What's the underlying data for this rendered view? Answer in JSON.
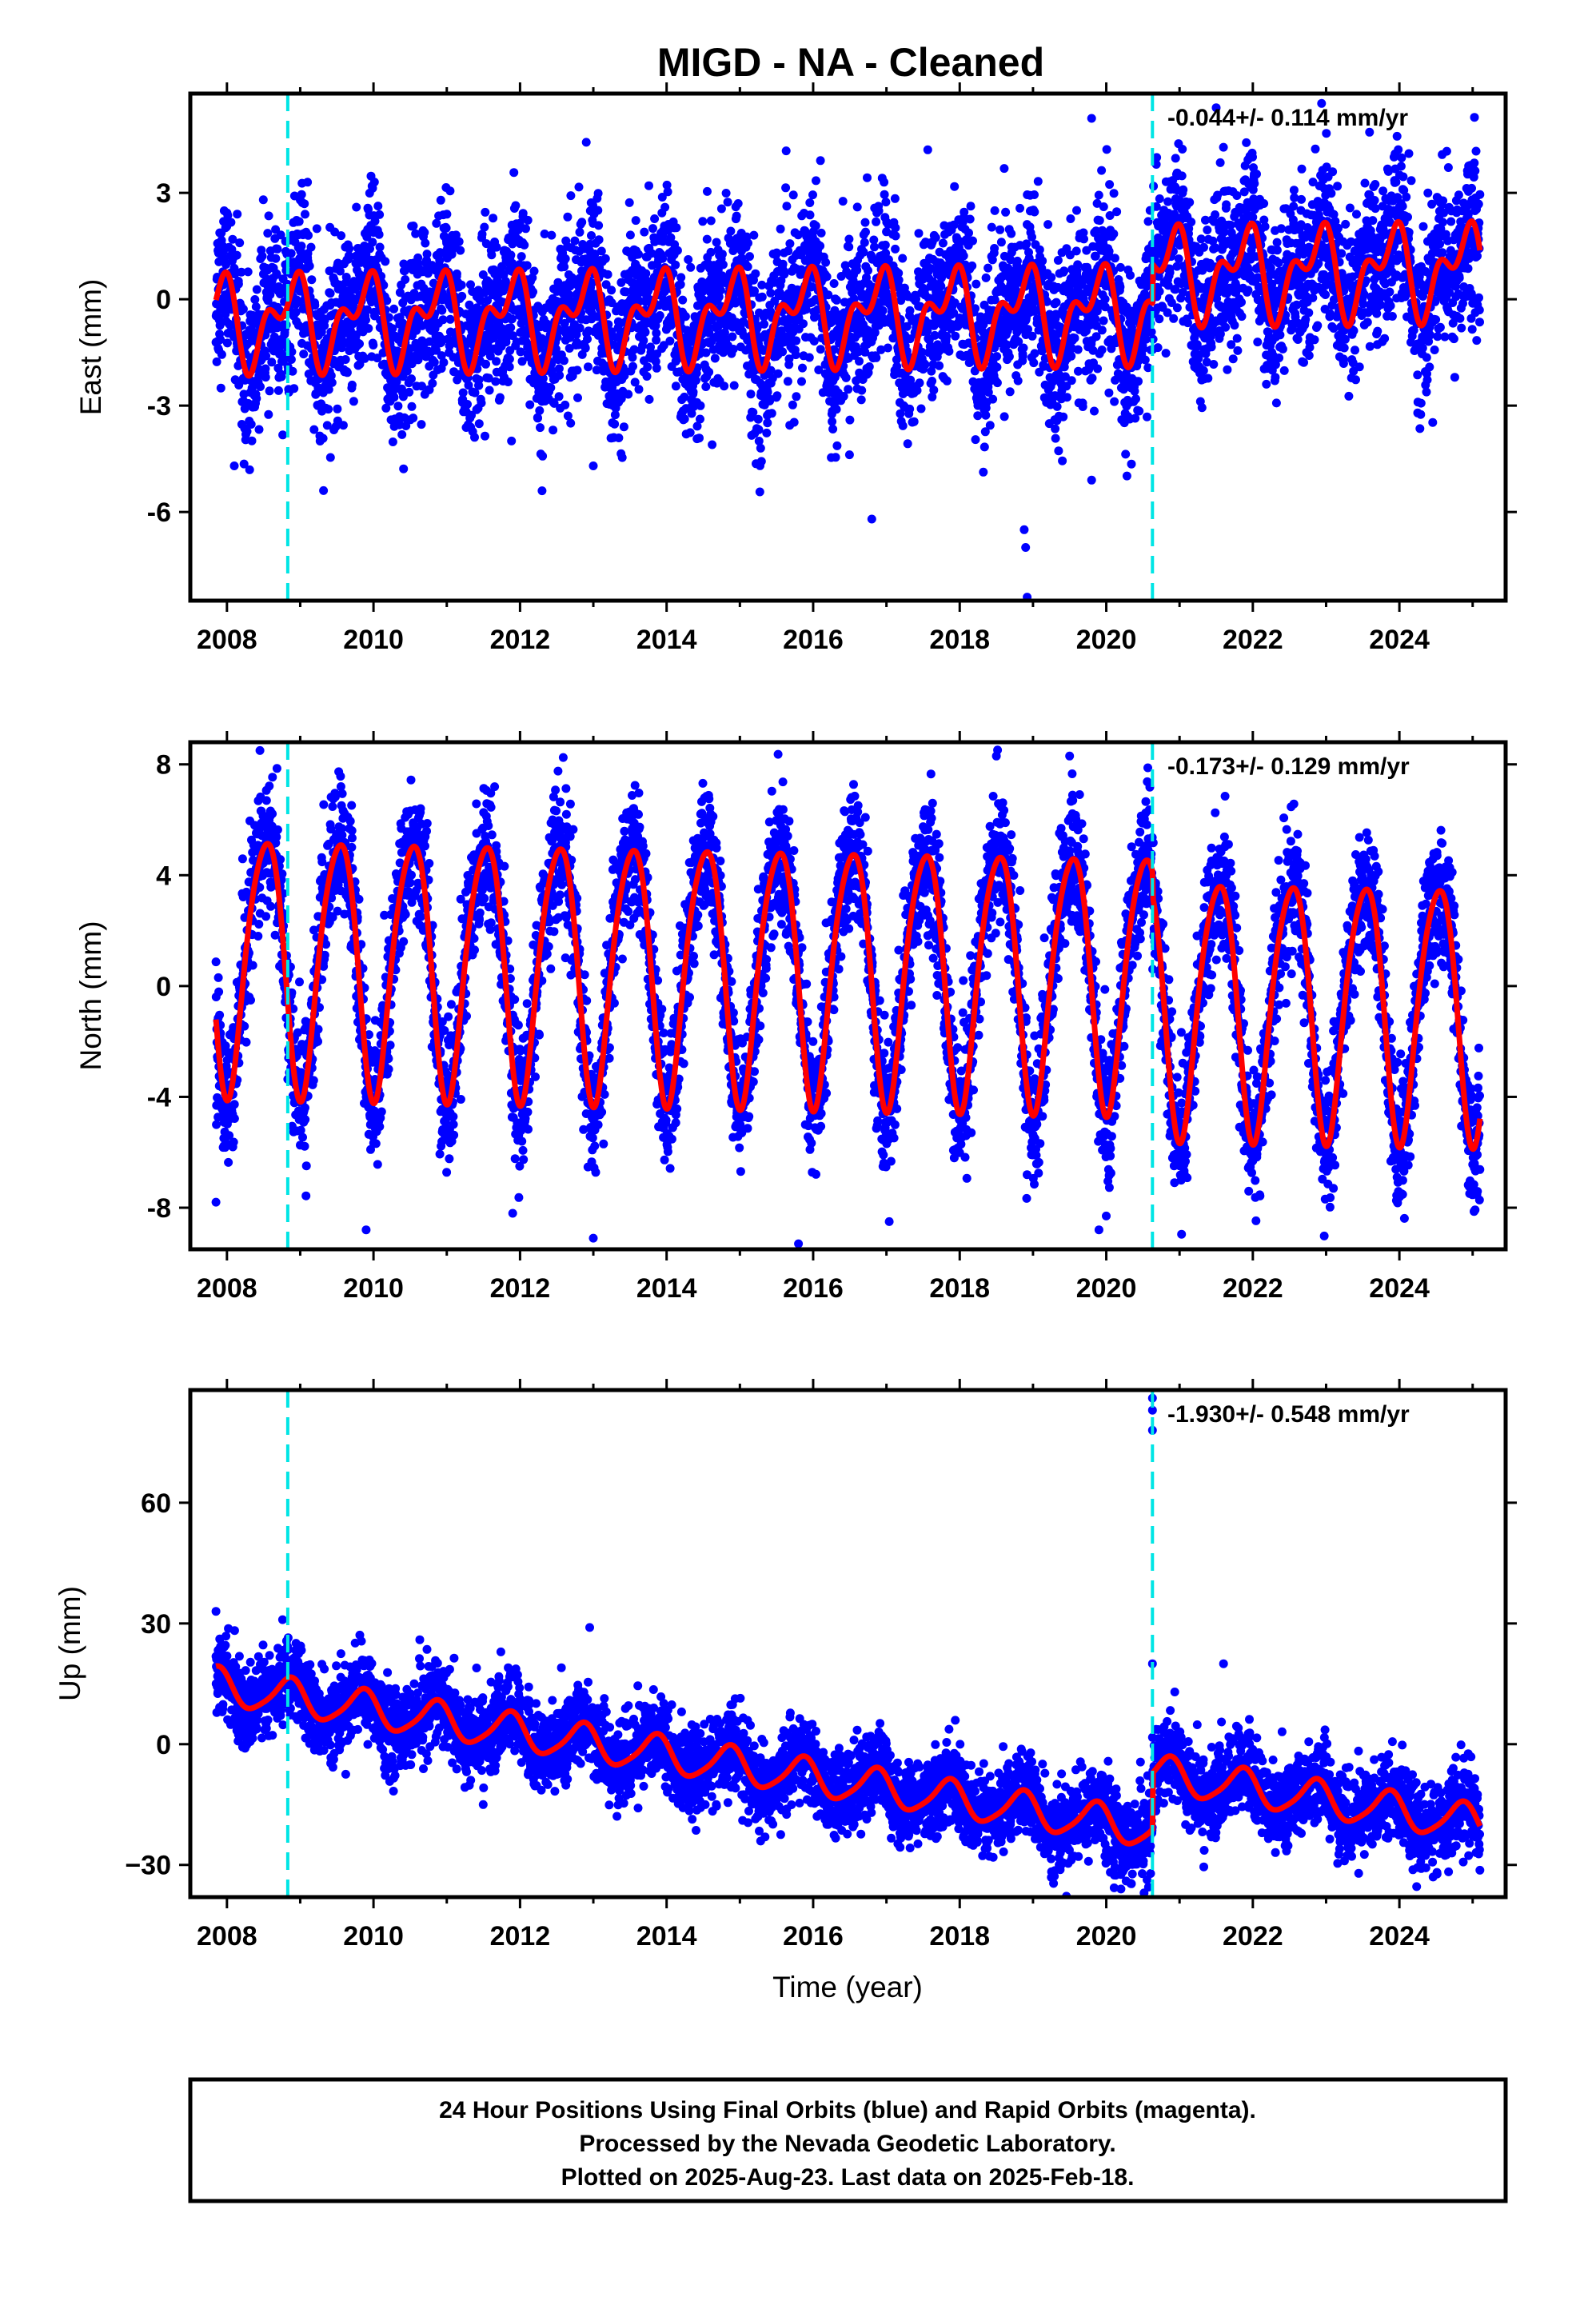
{
  "title": "MIGD  - NA - Cleaned",
  "colors": {
    "points": "#0000ff",
    "model": "#ff0000",
    "breaks": "#00e5e5",
    "frame": "#000000"
  },
  "footer": {
    "line1": "24 Hour Positions Using Final Orbits (blue) and Rapid Orbits (magenta).",
    "line2": "Processed by the Nevada Geodetic Laboratory.",
    "line3": "Plotted on 2025-Aug-23. Last data on 2025-Feb-18."
  },
  "chart_data": [
    {
      "type": "scatter",
      "name": "east",
      "ylabel": "East (mm)",
      "xlabel": "",
      "rate_text": "-0.044+/- 0.114 mm/yr",
      "xlim": [
        2007.5,
        2025.45
      ],
      "ylim": [
        -8.5,
        5.8
      ],
      "xticks": [
        2008,
        2010,
        2012,
        2014,
        2016,
        2018,
        2020,
        2022,
        2024
      ],
      "xtick_labels": [
        "2008",
        "2010",
        "2012",
        "2014",
        "2016",
        "2018",
        "2020",
        "2022",
        "2024"
      ],
      "yticks": [
        -6,
        -3,
        0,
        3
      ],
      "ytick_labels": [
        "-6",
        "-3",
        "0",
        "3"
      ],
      "break_lines": [
        2008.83,
        2020.63
      ],
      "model": {
        "annual_amp": 1.0,
        "annual_phase": 0.62,
        "semi_amp": 0.7,
        "semi_phase": 0.9,
        "offset_before": -0.6,
        "offset_after": 0.5,
        "break_year": 2020.63,
        "trend": 0.02,
        "start": 2007.85,
        "end": 2025.1,
        "scatter": 1.15
      },
      "outliers": [
        [
          2018.9,
          -7.0
        ],
        [
          2018.88,
          -6.5
        ],
        [
          2018.92,
          -8.4
        ],
        [
          2016.8,
          -6.2
        ],
        [
          2019.8,
          -5.1
        ],
        [
          2012.3,
          -5.4
        ],
        [
          2013.0,
          -4.7
        ],
        [
          2008.1,
          -4.7
        ],
        [
          2019.8,
          5.1
        ],
        [
          2021.5,
          5.4
        ],
        [
          2009.1,
          3.3
        ]
      ]
    },
    {
      "type": "scatter",
      "name": "north",
      "ylabel": "North (mm)",
      "xlabel": "",
      "rate_text": "-0.173+/- 0.129 mm/yr",
      "xlim": [
        2007.5,
        2025.45
      ],
      "ylim": [
        -9.5,
        8.8
      ],
      "xticks": [
        2008,
        2010,
        2012,
        2014,
        2016,
        2018,
        2020,
        2022,
        2024
      ],
      "xtick_labels": [
        "2008",
        "2010",
        "2012",
        "2014",
        "2016",
        "2018",
        "2020",
        "2022",
        "2024"
      ],
      "yticks": [
        -8,
        -4,
        0,
        4,
        8
      ],
      "ytick_labels": [
        "-8",
        "-4",
        "0",
        "4",
        "8"
      ],
      "break_lines": [
        2008.83,
        2020.63
      ],
      "model": {
        "annual_amp": 4.6,
        "annual_phase": 0.27,
        "semi_amp": 0.6,
        "semi_phase": 0.1,
        "offset_before": 1.0,
        "offset_after": 0.1,
        "break_year": 2020.63,
        "trend": -0.05,
        "start": 2007.85,
        "end": 2025.1,
        "scatter": 1.2
      },
      "outliers": [
        [
          2007.85,
          -7.8
        ],
        [
          2009.9,
          -8.8
        ],
        [
          2011.9,
          -8.2
        ],
        [
          2013.0,
          -9.1
        ],
        [
          2015.8,
          -9.3
        ],
        [
          2019.9,
          -8.8
        ],
        [
          2020.0,
          -8.3
        ],
        [
          2023.1,
          -7.3
        ],
        [
          2018.5,
          8.3
        ],
        [
          2019.5,
          8.3
        ],
        [
          2008.45,
          8.5
        ]
      ]
    },
    {
      "type": "scatter",
      "name": "up",
      "ylabel": "Up (mm)",
      "xlabel": "Time (year)",
      "rate_text": "-1.930+/- 0.548 mm/yr",
      "xlim": [
        2007.5,
        2025.45
      ],
      "ylim": [
        -38,
        88
      ],
      "xticks": [
        2008,
        2010,
        2012,
        2014,
        2016,
        2018,
        2020,
        2022,
        2024
      ],
      "xtick_labels": [
        "2008",
        "2010",
        "2012",
        "2014",
        "2016",
        "2018",
        "2020",
        "2022",
        "2024"
      ],
      "yticks": [
        -30,
        0,
        30,
        60
      ],
      "ytick_labels": [
        "−30",
        "0",
        "30",
        "60"
      ],
      "break_lines": [
        2008.83,
        2020.63
      ],
      "model": {
        "annual_amp": 4.5,
        "annual_phase": 0.6,
        "semi_amp": 0.8,
        "semi_phase": 0.3,
        "offset_before": 14.0,
        "offset_after": 28.0,
        "break_year": 2020.63,
        "trend": -2.8,
        "start": 2007.85,
        "end": 2025.1,
        "scatter": 5.0
      },
      "outliers": [
        [
          2020.63,
          86
        ],
        [
          2020.63,
          83
        ],
        [
          2020.63,
          78
        ],
        [
          2020.63,
          20
        ],
        [
          2021.6,
          20
        ],
        [
          2007.85,
          33
        ],
        [
          2012.95,
          29
        ],
        [
          2020.2,
          -36
        ]
      ]
    }
  ]
}
